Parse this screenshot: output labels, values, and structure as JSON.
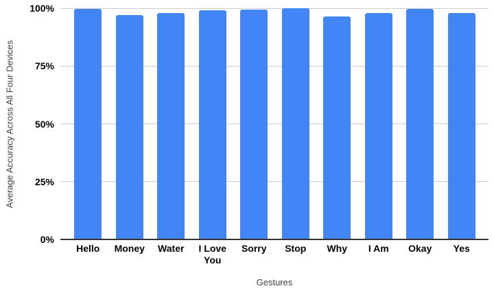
{
  "chart_data": {
    "type": "bar",
    "title": "",
    "categories": [
      "Hello",
      "Money",
      "Water",
      "I Love You",
      "Sorry",
      "Stop",
      "Why",
      "I Am",
      "Okay",
      "Yes"
    ],
    "values": [
      99.8,
      96.9,
      98.0,
      99.2,
      99.3,
      100.0,
      96.5,
      97.8,
      99.6,
      98.0
    ],
    "xlabel": "Gestures",
    "ylabel": "Average Accuracy Across All Four Devices",
    "ylim": [
      0,
      100
    ],
    "yticks": [
      0,
      25,
      50,
      75,
      100
    ],
    "ytick_labels": [
      "0%",
      "25%",
      "50%",
      "75%",
      "100%"
    ],
    "grid": true,
    "legend": "none",
    "bar_color": "#4285f4",
    "gridline_color": "#cccccc",
    "axis_line_color": "#333333",
    "tick_label_color": "#000000",
    "axis_title_color": "#424242",
    "background_color": "#ffffff"
  }
}
